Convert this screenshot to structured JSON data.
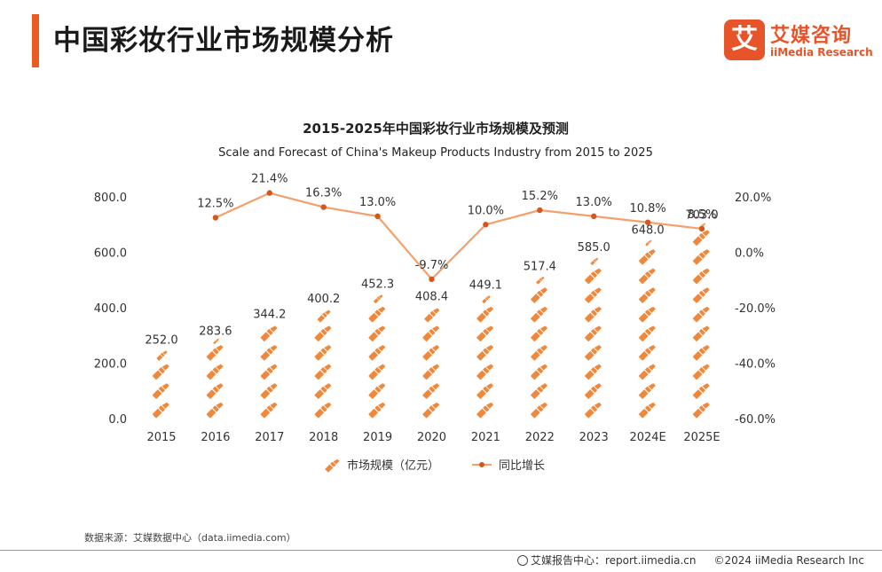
{
  "header": {
    "title": "中国彩妆行业市场规模分析"
  },
  "logo": {
    "mark": "艾",
    "name_cn": "艾媒咨询",
    "name_en": "iiMedia Research"
  },
  "colors": {
    "accent": "#ea5a21",
    "series_bar": "#f0883c",
    "series_line": "#f3a06a",
    "line_marker": "#d4581e"
  },
  "chart_data": {
    "type": "bar",
    "title": "2015-2025年中国彩妆行业市场规模及预测",
    "subtitle": "Scale and Forecast of China's Makeup Products Industry from 2015 to 2025",
    "categories": [
      "2015",
      "2016",
      "2017",
      "2018",
      "2019",
      "2020",
      "2021",
      "2022",
      "2023",
      "2024E",
      "2025E"
    ],
    "series": [
      {
        "name": "市场规模（亿元）",
        "type": "pictograph-bar",
        "axis": "left",
        "icon": "lipstick-icon",
        "values": [
          252.0,
          283.6,
          344.2,
          400.2,
          452.3,
          408.4,
          449.1,
          517.4,
          585.0,
          648.0,
          703.0
        ],
        "labels": [
          "252.0",
          "283.6",
          "344.2",
          "400.2",
          "452.3",
          "408.4",
          "449.1",
          "517.4",
          "585.0",
          "648.0",
          "703.0"
        ]
      },
      {
        "name": "同比增长",
        "type": "line",
        "axis": "right",
        "values": [
          null,
          12.5,
          21.4,
          16.3,
          13.0,
          -9.7,
          10.0,
          15.2,
          13.0,
          10.8,
          8.5
        ],
        "labels": [
          "",
          "12.5%",
          "21.4%",
          "16.3%",
          "13.0%",
          "-9.7%",
          "10.0%",
          "15.2%",
          "13.0%",
          "10.8%",
          "8.5%"
        ]
      }
    ],
    "y_left": {
      "ylim": [
        0,
        800
      ],
      "ticks": [
        "0.0",
        "200.0",
        "400.0",
        "600.0",
        "800.0"
      ]
    },
    "y_right": {
      "ylim": [
        -60,
        20
      ],
      "ticks": [
        "-60.0%",
        "-40.0%",
        "-20.0%",
        "0.0%",
        "20.0%"
      ]
    },
    "grid": false,
    "legend": "bottom-center"
  },
  "source": "数据来源：艾媒数据中心（data.iimedia.com）",
  "footer": {
    "report": "艾媒报告中心：report.iimedia.cn",
    "copyright": "©2024  iiMedia Research  Inc"
  }
}
